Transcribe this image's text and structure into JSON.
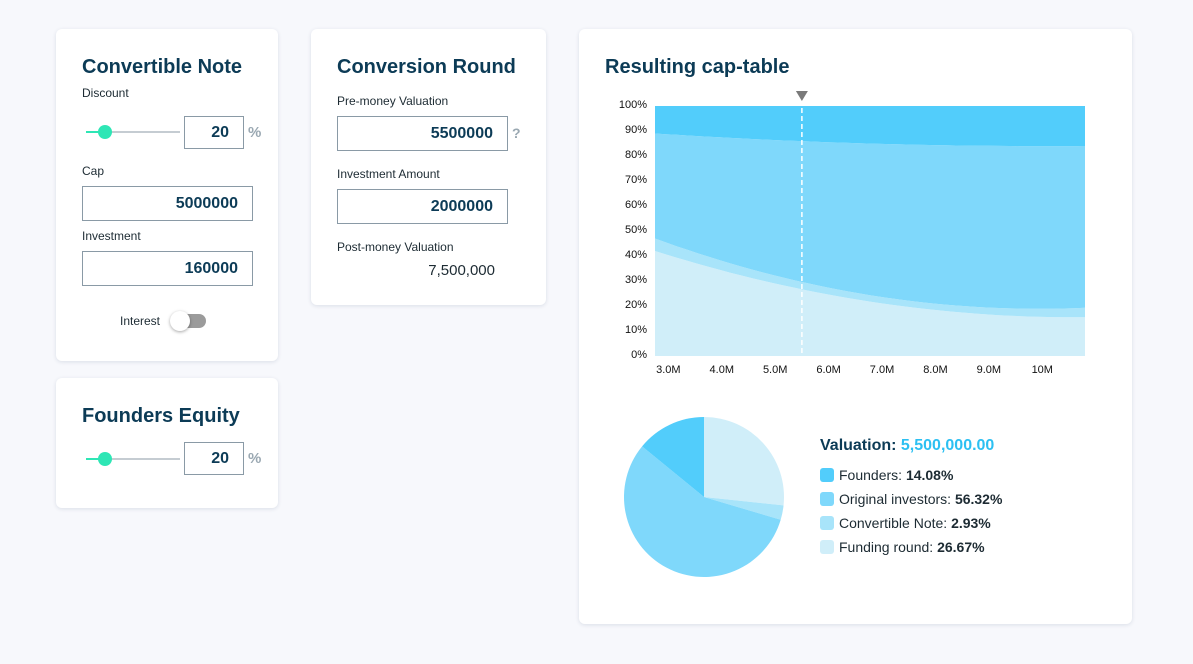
{
  "convertible_note": {
    "title": "Convertible Note",
    "discount_label": "Discount",
    "discount_value": "20",
    "discount_unit": "%",
    "discount_slider_fraction": 0.2,
    "cap_label": "Cap",
    "cap_value": "5000000",
    "investment_label": "Investment",
    "investment_value": "160000",
    "interest_label": "Interest",
    "interest_on": false
  },
  "founders_equity": {
    "title": "Founders Equity",
    "value": "20",
    "unit": "%",
    "slider_fraction": 0.2
  },
  "conversion_round": {
    "title": "Conversion Round",
    "pre_money_label": "Pre-money Valuation",
    "pre_money_value": "5500000",
    "help_glyph": "?",
    "investment_label": "Investment Amount",
    "investment_value": "2000000",
    "post_money_label": "Post-money Valuation",
    "post_money_value": "7,500,000"
  },
  "cap_table": {
    "title": "Resulting cap-table",
    "valuation_label": "Valuation:",
    "valuation_value": "5,500,000.00",
    "legend": [
      {
        "label": "Founders:",
        "value": "14.08%",
        "color": "#52cdfb"
      },
      {
        "label": "Original investors:",
        "value": "56.32%",
        "color": "#7fd8fb"
      },
      {
        "label": "Convertible Note:",
        "value": "2.93%",
        "color": "#a8e4fa"
      },
      {
        "label": "Funding round:",
        "value": "26.67%",
        "color": "#d0eef9"
      }
    ]
  },
  "chart_data": [
    {
      "type": "area",
      "stacked": "percent",
      "x": [
        2750000,
        5500000,
        10800000
      ],
      "x_tick_labels": [
        "3.0M",
        "4.0M",
        "5.0M",
        "6.0M",
        "7.0M",
        "8.0M",
        "9.0M",
        "10M"
      ],
      "x_ticks": [
        3000000,
        4000000,
        5000000,
        6000000,
        7000000,
        8000000,
        9000000,
        10000000
      ],
      "y_tick_labels": [
        "0%",
        "10%",
        "20%",
        "30%",
        "40%",
        "50%",
        "60%",
        "70%",
        "80%",
        "90%",
        "100%"
      ],
      "xlim": [
        2750000,
        10800000
      ],
      "ylim": [
        0,
        100
      ],
      "marker_x": 5500000,
      "series": [
        {
          "values": [
            42,
            26.67,
            15.5
          ],
          "color": "#d0eef9"
        },
        {
          "values": [
            5,
            2.93,
            3.8
          ],
          "color": "#a8e4fa"
        },
        {
          "values": [
            42,
            56.32,
            64.7
          ],
          "color": "#7fd8fb"
        },
        {
          "values": [
            11,
            14.08,
            16
          ],
          "color": "#52cdfb"
        }
      ]
    },
    {
      "type": "pie",
      "series": [
        {
          "values": [
            26.67,
            2.93,
            56.32,
            14.08
          ],
          "colors": [
            "#d0eef9",
            "#a8e4fa",
            "#7fd8fb",
            "#52cdfb"
          ]
        }
      ]
    }
  ]
}
